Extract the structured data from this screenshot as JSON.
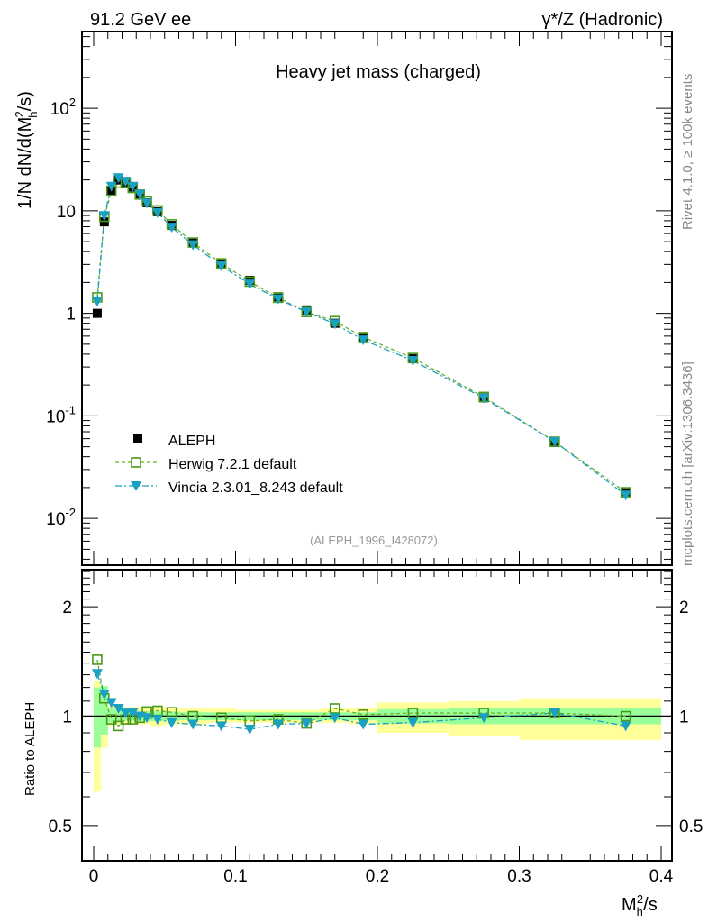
{
  "header": {
    "left": "91.2 GeV ee",
    "right": "γ*/Z (Hadronic)"
  },
  "side_text": {
    "top": "Rivet 4.1.0, ≥ 100k events",
    "bottom": "mcplots.cern.ch [arXiv:1306.3436]"
  },
  "colors": {
    "aleph": "#000000",
    "herwig": "#4a9a1a",
    "herwig_line": "#6ab030",
    "vincia": "#1aa0c0",
    "band_inner": "#99ff99",
    "band_outer": "#ffff99"
  },
  "chart_data": [
    {
      "type": "scatter",
      "title": "Heavy jet mass (charged)",
      "analysis_label": "(ALEPH_1996_I428072)",
      "ylabel": "1/N  dN/d(M_h^2/s)",
      "yscale": "log",
      "ylim": [
        0.0035,
        560
      ],
      "xlim": [
        -0.008,
        0.408
      ],
      "ytick_labels": [
        "10^-2",
        "10^-1",
        "1",
        "10",
        "10^2"
      ],
      "ytick_values": [
        0.01,
        0.1,
        1,
        10,
        100
      ],
      "legend": {
        "position": "bottom-left",
        "entries": [
          "ALEPH",
          "Herwig 7.2.1 default",
          "Vincia 2.3.01_8.243 default"
        ]
      },
      "x": [
        0.0025,
        0.0075,
        0.0125,
        0.0175,
        0.0225,
        0.0275,
        0.0325,
        0.0375,
        0.045,
        0.055,
        0.07,
        0.09,
        0.11,
        0.13,
        0.15,
        0.17,
        0.19,
        0.225,
        0.275,
        0.325,
        0.375
      ],
      "series": [
        {
          "name": "ALEPH",
          "values": [
            1.0,
            7.8,
            15.9,
            20,
            19,
            17,
            14.5,
            12,
            9.8,
            7.2,
            4.9,
            3.1,
            2.1,
            1.45,
            1.08,
            0.8,
            0.58,
            0.36,
            0.15,
            0.055,
            0.018
          ]
        },
        {
          "name": "Herwig 7.2.1 default",
          "values": [
            1.43,
            8.74,
            15.6,
            18.8,
            18.6,
            16.7,
            14.4,
            12.4,
            10.1,
            7.38,
            4.9,
            3.07,
            2.04,
            1.42,
            1.03,
            0.84,
            0.586,
            0.367,
            0.153,
            0.056,
            0.018
          ]
        },
        {
          "name": "Vincia 2.3.01_8.243 default",
          "values": [
            1.31,
            8.97,
            17.3,
            21.0,
            19.4,
            17.3,
            14.5,
            11.9,
            9.6,
            6.91,
            4.66,
            2.91,
            1.93,
            1.38,
            1.03,
            0.79,
            0.55,
            0.346,
            0.149,
            0.056,
            0.0169
          ]
        }
      ]
    },
    {
      "type": "scatter",
      "ylabel": "Ratio to ALEPH",
      "xlabel": "M_h^2/s",
      "yscale": "log",
      "ylim": [
        0.4,
        2.53
      ],
      "xlim": [
        -0.008,
        0.408
      ],
      "xtick_values": [
        0,
        0.1,
        0.2,
        0.3,
        0.4
      ],
      "xtick_labels": [
        "0",
        "0.1",
        "0.2",
        "0.3",
        "0.4"
      ],
      "ytick_values": [
        0.5,
        1,
        2
      ],
      "ytick_labels": [
        "0.5",
        "1",
        "2"
      ],
      "bin_edges": [
        0,
        0.005,
        0.01,
        0.015,
        0.02,
        0.025,
        0.03,
        0.035,
        0.04,
        0.05,
        0.06,
        0.08,
        0.1,
        0.12,
        0.14,
        0.16,
        0.18,
        0.2,
        0.25,
        0.3,
        0.35,
        0.4
      ],
      "band_inner": [
        [
          0.82,
          1.2
        ],
        [
          0.89,
          1.21
        ],
        [
          0.96,
          1.05
        ],
        [
          0.97,
          1.04
        ],
        [
          0.97,
          1.03
        ],
        [
          0.97,
          1.03
        ],
        [
          0.97,
          1.03
        ],
        [
          0.97,
          1.03
        ],
        [
          0.97,
          1.03
        ],
        [
          0.97,
          1.03
        ],
        [
          0.975,
          1.025
        ],
        [
          0.975,
          1.025
        ],
        [
          0.975,
          1.025
        ],
        [
          0.975,
          1.025
        ],
        [
          0.975,
          1.025
        ],
        [
          0.975,
          1.025
        ],
        [
          0.975,
          1.025
        ],
        [
          0.955,
          1.045
        ],
        [
          0.95,
          1.05
        ],
        [
          0.95,
          1.05
        ],
        [
          0.95,
          1.05
        ]
      ],
      "band_outer": [
        [
          0.62,
          1.25
        ],
        [
          0.82,
          1.21
        ],
        [
          0.94,
          1.07
        ],
        [
          0.95,
          1.06
        ],
        [
          0.95,
          1.06
        ],
        [
          0.95,
          1.06
        ],
        [
          0.95,
          1.06
        ],
        [
          0.95,
          1.06
        ],
        [
          0.94,
          1.06
        ],
        [
          0.95,
          1.06
        ],
        [
          0.95,
          1.05
        ],
        [
          0.96,
          1.05
        ],
        [
          0.96,
          1.04
        ],
        [
          0.96,
          1.04
        ],
        [
          0.96,
          1.04
        ],
        [
          0.96,
          1.05
        ],
        [
          0.95,
          1.05
        ],
        [
          0.9,
          1.09
        ],
        [
          0.88,
          1.1
        ],
        [
          0.86,
          1.12
        ],
        [
          0.86,
          1.12
        ]
      ],
      "x": [
        0.0025,
        0.0075,
        0.0125,
        0.0175,
        0.0225,
        0.0275,
        0.0325,
        0.0375,
        0.045,
        0.055,
        0.07,
        0.09,
        0.11,
        0.13,
        0.15,
        0.17,
        0.19,
        0.225,
        0.275,
        0.325,
        0.375
      ],
      "series": [
        {
          "name": "Herwig 7.2.1 default",
          "values": [
            1.43,
            1.12,
            0.98,
            0.94,
            0.98,
            0.98,
            0.99,
            1.03,
            1.035,
            1.025,
            1.0,
            0.99,
            0.97,
            0.98,
            0.955,
            1.05,
            1.01,
            1.02,
            1.02,
            1.02,
            1.0
          ]
        },
        {
          "name": "Vincia 2.3.01_8.243 default",
          "values": [
            1.31,
            1.15,
            1.09,
            1.05,
            1.02,
            1.02,
            1.0,
            0.99,
            0.98,
            0.96,
            0.95,
            0.94,
            0.92,
            0.95,
            0.955,
            0.99,
            0.95,
            0.96,
            0.99,
            1.02,
            0.94
          ]
        }
      ]
    }
  ]
}
